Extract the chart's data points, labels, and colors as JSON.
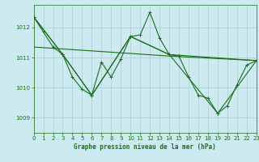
{
  "title": "Graphe pression niveau de la mer (hPa)",
  "bg_color": "#cceaf0",
  "grid_color": "#aad4da",
  "line_color": "#1a6e1a",
  "x_min": 0,
  "x_max": 23,
  "y_min": 1008.5,
  "y_max": 1012.75,
  "yticks": [
    1009,
    1010,
    1011,
    1012
  ],
  "xticks": [
    0,
    1,
    2,
    3,
    4,
    5,
    6,
    7,
    8,
    9,
    10,
    11,
    12,
    13,
    14,
    15,
    16,
    17,
    18,
    19,
    20,
    21,
    22,
    23
  ],
  "series_main": {
    "x": [
      0,
      1,
      2,
      3,
      4,
      5,
      6,
      7,
      8,
      9,
      10,
      11,
      12,
      13,
      14,
      15,
      16,
      17,
      18,
      19,
      20,
      21,
      22,
      23
    ],
    "y": [
      1012.35,
      1011.85,
      1011.35,
      1011.1,
      1010.35,
      1009.95,
      1009.75,
      1010.85,
      1010.35,
      1010.95,
      1011.7,
      1011.75,
      1012.5,
      1011.65,
      1011.1,
      1011.05,
      1010.35,
      1009.75,
      1009.65,
      1009.15,
      1009.4,
      1010.1,
      1010.75,
      1010.9
    ]
  },
  "series_v1": {
    "x": [
      0,
      3,
      6,
      10,
      14,
      23
    ],
    "y": [
      1012.35,
      1011.1,
      1009.75,
      1011.7,
      1011.1,
      1010.9
    ]
  },
  "series_v2": {
    "x": [
      0,
      3,
      6,
      10,
      14,
      19,
      23
    ],
    "y": [
      1012.35,
      1011.1,
      1009.75,
      1011.7,
      1011.1,
      1009.15,
      1010.9
    ]
  },
  "trend_line": {
    "x": [
      0,
      14,
      23
    ],
    "y": [
      1011.35,
      1011.05,
      1010.9
    ]
  }
}
